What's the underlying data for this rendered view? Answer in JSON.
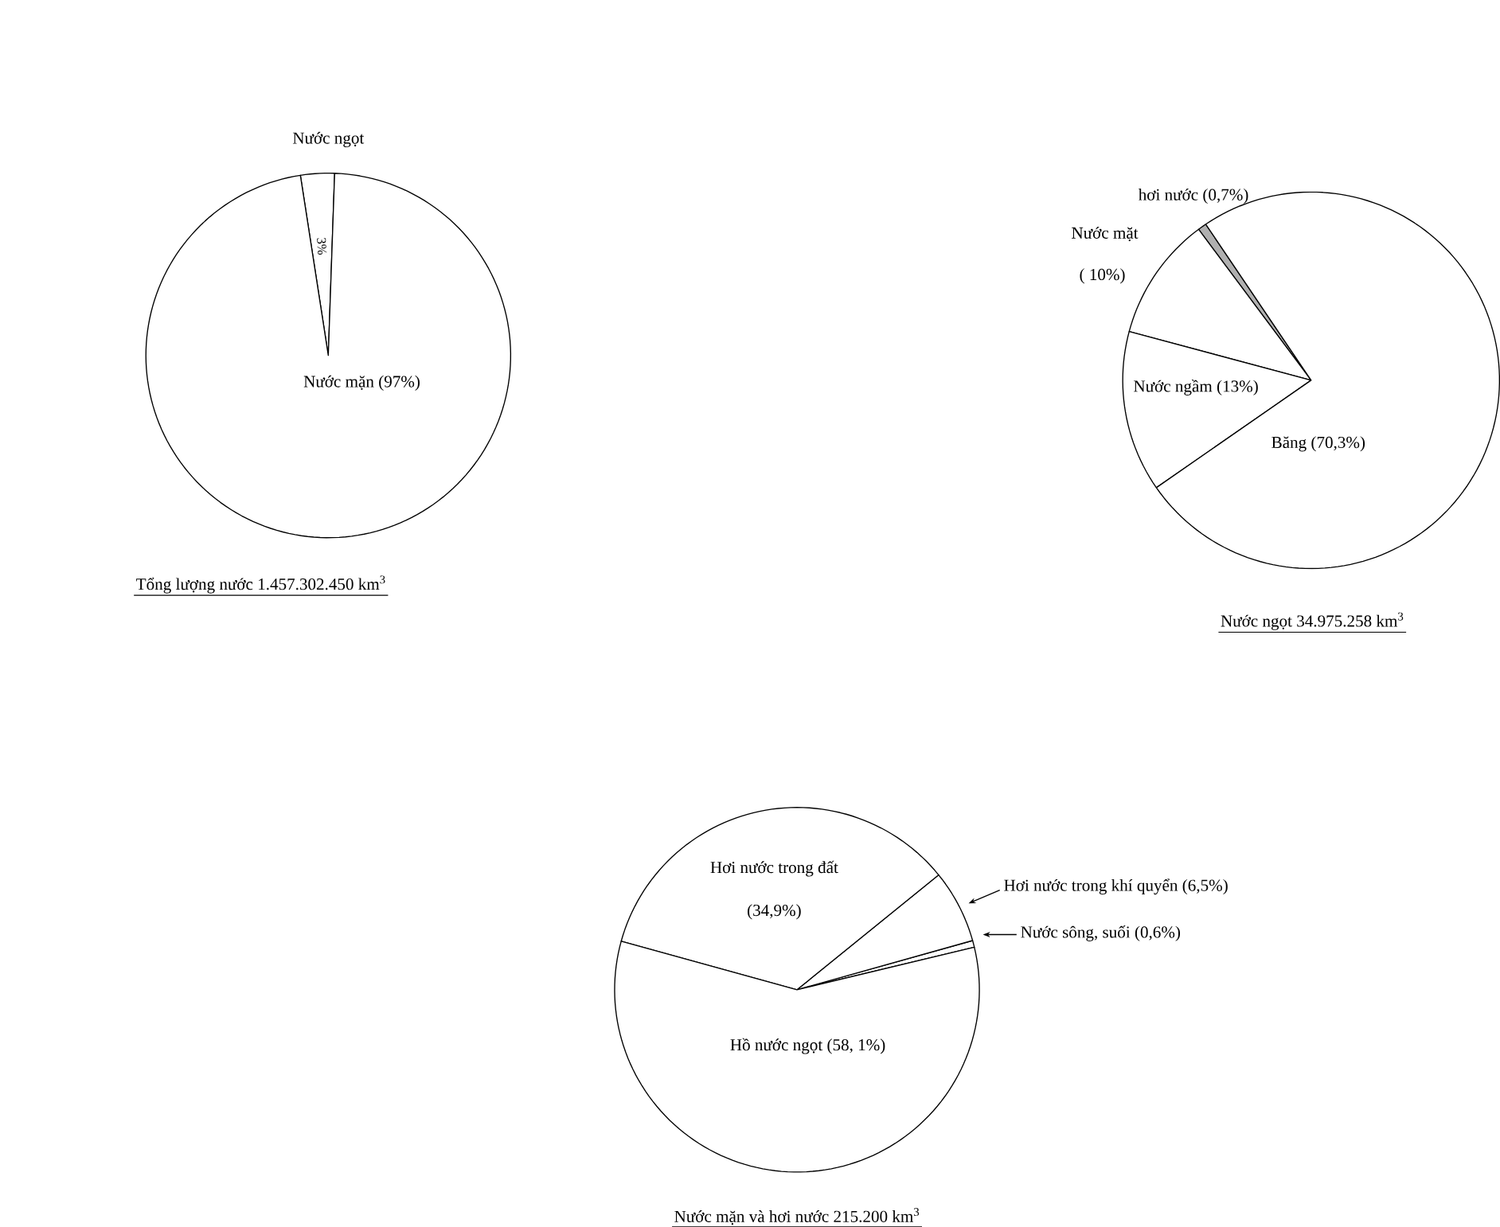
{
  "chart_data": [
    {
      "type": "pie",
      "title": "Tổng lượng nước 1.457.302.450 km$^{3}$",
      "categories": [
        "Nước ngọt",
        "Nước mặn"
      ],
      "values": [
        3,
        97
      ],
      "colors": [
        "#ffffff",
        "#ffffff"
      ],
      "value_labels": [
        "3%",
        "(97%)"
      ]
    },
    {
      "type": "pie",
      "title": "Nước ngọt 34.975.258 km$^{3}$",
      "categories": [
        "hơi nước",
        "Nước mặt",
        "Nước ngầm",
        "Băng"
      ],
      "values": [
        0.7,
        10,
        13,
        70.3
      ],
      "colors": [
        "#b0b0b0",
        "#ffffff",
        "#ffffff",
        "#ffffff"
      ],
      "value_labels": [
        "(0,7%)",
        "( 10%)",
        "(13%)",
        "(70,3%)"
      ]
    },
    {
      "type": "pie",
      "title": "Nước mặn và hơi nước 215.200 km$^{3}$",
      "categories": [
        "Nước sông, suối",
        "Hơi nước trong khí quyển",
        "Hơi nước trong đất",
        "Hồ nước ngọt"
      ],
      "values": [
        0.6,
        6.5,
        34.9,
        58.1
      ],
      "colors": [
        "#ffffff",
        "#ffffff",
        "#ffffff",
        "#ffffff"
      ],
      "value_labels": [
        "(0,6%)",
        "(6,5%)",
        "(34,9%)",
        "(58, 1%)"
      ]
    }
  ]
}
